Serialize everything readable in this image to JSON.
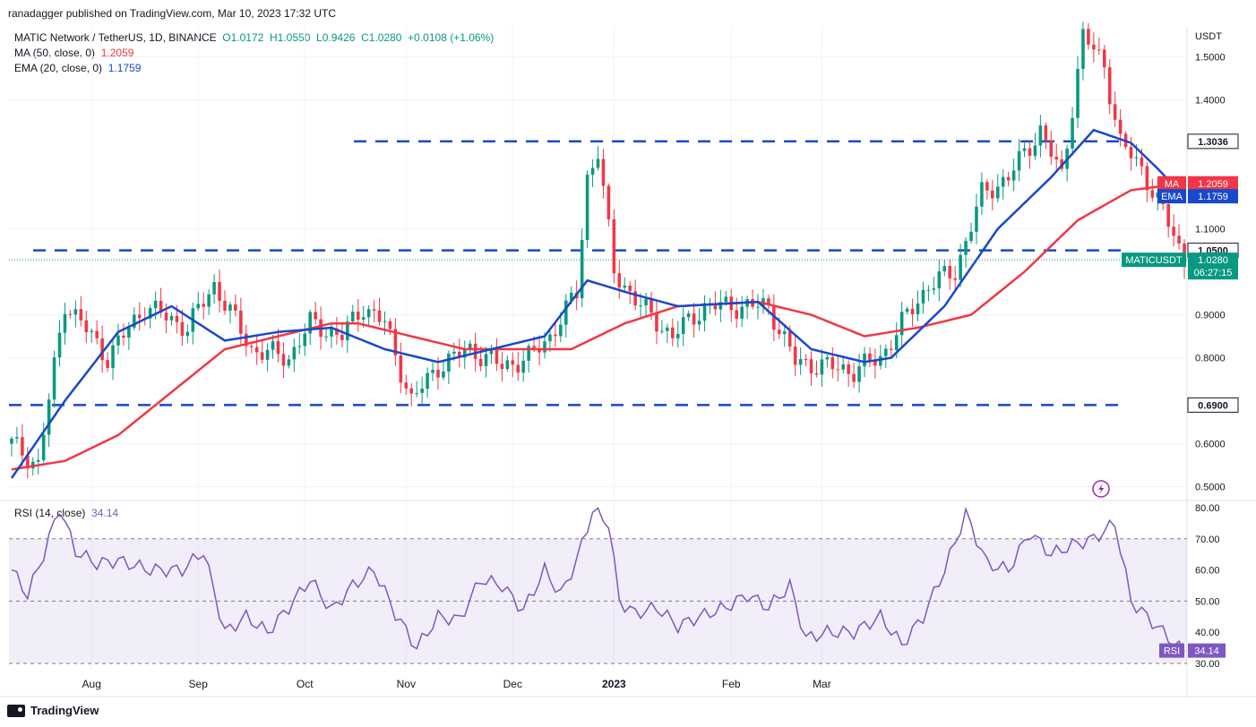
{
  "header": {
    "publisher": "ranadagger published on TradingView.com, Mar 10, 2023 17:32 UTC"
  },
  "legend": {
    "symbol": "MATIC Network / TetherUS, 1D, BINANCE",
    "o": "O1.0172",
    "h": "H1.0550",
    "l": "L0.9426",
    "c": "C1.0280",
    "chg": "+0.0108 (+1.06%)",
    "ma_label": "MA (50, close, 0)",
    "ma_value": "1.2059",
    "ema_label": "EMA (20, close, 0)",
    "ema_value": "1.1759"
  },
  "rsi_legend": {
    "label": "RSI (14, close)",
    "value": "34.14"
  },
  "footer": {
    "brand": "TradingView"
  },
  "colors": {
    "up": "#089981",
    "down": "#f23645",
    "ma": "#f23645",
    "ema": "#1848cc",
    "rsi": "#7e57c2",
    "level": "#1848cc"
  },
  "chart_data": [
    {
      "type": "line",
      "title": "MATIC Network / TetherUS, 1D, BINANCE",
      "ylabel": "USDT",
      "ylim": [
        0.47,
        1.57
      ],
      "x_tick_labels": [
        "Aug",
        "Sep",
        "Oct",
        "Nov",
        "Dec",
        "2023",
        "Feb",
        "Mar"
      ],
      "y_tick_labels": [
        "0.5000",
        "0.6000",
        "0.8000",
        "0.9000",
        "1.1000",
        "1.4000",
        "1.5000"
      ],
      "levels": [
        {
          "value": 1.3036,
          "label": "1.3036"
        },
        {
          "value": 1.05,
          "label": "1.0500"
        },
        {
          "value": 0.69,
          "label": "0.6900"
        }
      ],
      "last_price": {
        "name": "MATICUSDT",
        "value": 1.028,
        "label": "1.0280",
        "countdown": "06:27:15"
      },
      "ma_tag": {
        "name": "MA",
        "value": 1.2059,
        "label": "1.2059"
      },
      "ema_tag": {
        "name": "EMA",
        "value": 1.1759,
        "label": "1.1759"
      },
      "close_keypoints": [
        [
          0,
          0.6
        ],
        [
          5,
          0.55
        ],
        [
          10,
          0.93
        ],
        [
          18,
          0.8
        ],
        [
          25,
          0.92
        ],
        [
          33,
          0.87
        ],
        [
          38,
          0.97
        ],
        [
          45,
          0.82
        ],
        [
          52,
          0.8
        ],
        [
          56,
          0.88
        ],
        [
          62,
          0.85
        ],
        [
          66,
          0.92
        ],
        [
          70,
          0.88
        ],
        [
          75,
          0.7
        ],
        [
          80,
          0.78
        ],
        [
          86,
          0.82
        ],
        [
          92,
          0.78
        ],
        [
          97,
          0.8
        ],
        [
          101,
          0.85
        ],
        [
          106,
          0.95
        ],
        [
          108,
          1.22
        ],
        [
          110,
          1.28
        ],
        [
          113,
          1.0
        ],
        [
          118,
          0.92
        ],
        [
          124,
          0.85
        ],
        [
          130,
          0.92
        ],
        [
          136,
          0.92
        ],
        [
          142,
          0.92
        ],
        [
          147,
          0.79
        ],
        [
          153,
          0.78
        ],
        [
          158,
          0.77
        ],
        [
          163,
          0.8
        ],
        [
          167,
          0.88
        ],
        [
          172,
          0.97
        ],
        [
          177,
          1.0
        ],
        [
          182,
          1.18
        ],
        [
          187,
          1.22
        ],
        [
          193,
          1.33
        ],
        [
          197,
          1.22
        ],
        [
          201,
          1.55
        ],
        [
          205,
          1.48
        ],
        [
          208,
          1.3
        ],
        [
          212,
          1.24
        ],
        [
          216,
          1.14
        ],
        [
          220,
          1.028
        ]
      ],
      "ma50_keypoints": [
        [
          0,
          0.54
        ],
        [
          10,
          0.56
        ],
        [
          20,
          0.62
        ],
        [
          30,
          0.72
        ],
        [
          40,
          0.82
        ],
        [
          50,
          0.85
        ],
        [
          60,
          0.88
        ],
        [
          65,
          0.88
        ],
        [
          75,
          0.85
        ],
        [
          85,
          0.82
        ],
        [
          95,
          0.82
        ],
        [
          105,
          0.82
        ],
        [
          115,
          0.88
        ],
        [
          125,
          0.92
        ],
        [
          140,
          0.93
        ],
        [
          150,
          0.9
        ],
        [
          160,
          0.85
        ],
        [
          170,
          0.87
        ],
        [
          180,
          0.9
        ],
        [
          190,
          1.0
        ],
        [
          200,
          1.12
        ],
        [
          210,
          1.19
        ],
        [
          220,
          1.2059
        ]
      ],
      "ema20_keypoints": [
        [
          0,
          0.52
        ],
        [
          10,
          0.7
        ],
        [
          20,
          0.86
        ],
        [
          30,
          0.92
        ],
        [
          40,
          0.84
        ],
        [
          50,
          0.86
        ],
        [
          60,
          0.87
        ],
        [
          70,
          0.82
        ],
        [
          80,
          0.79
        ],
        [
          90,
          0.82
        ],
        [
          100,
          0.85
        ],
        [
          108,
          0.98
        ],
        [
          116,
          0.95
        ],
        [
          125,
          0.92
        ],
        [
          140,
          0.93
        ],
        [
          150,
          0.82
        ],
        [
          160,
          0.79
        ],
        [
          165,
          0.8
        ],
        [
          175,
          0.92
        ],
        [
          185,
          1.1
        ],
        [
          195,
          1.22
        ],
        [
          203,
          1.33
        ],
        [
          210,
          1.3
        ],
        [
          215,
          1.24
        ],
        [
          220,
          1.1759
        ]
      ]
    },
    {
      "type": "line",
      "title": "RSI (14, close)",
      "ylim": [
        28,
        82
      ],
      "y_tick_labels": [
        "30.00",
        "40.00",
        "50.00",
        "60.00",
        "70.00",
        "80.00"
      ],
      "band": [
        30,
        70
      ],
      "midline": 50,
      "last": {
        "name": "RSI",
        "value": 34.14,
        "label": "34.14"
      },
      "rsi_keypoints": [
        [
          0,
          60
        ],
        [
          3,
          52
        ],
        [
          6,
          65
        ],
        [
          9,
          80
        ],
        [
          12,
          66
        ],
        [
          16,
          62
        ],
        [
          20,
          63
        ],
        [
          26,
          60
        ],
        [
          32,
          60
        ],
        [
          36,
          66
        ],
        [
          40,
          40
        ],
        [
          44,
          45
        ],
        [
          48,
          40
        ],
        [
          52,
          48
        ],
        [
          56,
          57
        ],
        [
          60,
          47
        ],
        [
          64,
          55
        ],
        [
          68,
          60
        ],
        [
          72,
          46
        ],
        [
          76,
          35
        ],
        [
          80,
          45
        ],
        [
          84,
          44
        ],
        [
          88,
          57
        ],
        [
          92,
          55
        ],
        [
          96,
          47
        ],
        [
          100,
          60
        ],
        [
          103,
          52
        ],
        [
          106,
          63
        ],
        [
          109,
          79
        ],
        [
          112,
          75
        ],
        [
          114,
          50
        ],
        [
          117,
          46
        ],
        [
          121,
          48
        ],
        [
          125,
          42
        ],
        [
          129,
          45
        ],
        [
          134,
          48
        ],
        [
          138,
          52
        ],
        [
          142,
          48
        ],
        [
          146,
          55
        ],
        [
          149,
          38
        ],
        [
          153,
          40
        ],
        [
          158,
          40
        ],
        [
          163,
          45
        ],
        [
          167,
          36
        ],
        [
          171,
          45
        ],
        [
          175,
          60
        ],
        [
          179,
          78
        ],
        [
          183,
          62
        ],
        [
          187,
          60
        ],
        [
          191,
          72
        ],
        [
          195,
          65
        ],
        [
          199,
          68
        ],
        [
          203,
          70
        ],
        [
          207,
          75
        ],
        [
          210,
          50
        ],
        [
          213,
          45
        ],
        [
          216,
          40
        ],
        [
          219,
          35
        ],
        [
          220,
          34.14
        ]
      ]
    }
  ]
}
